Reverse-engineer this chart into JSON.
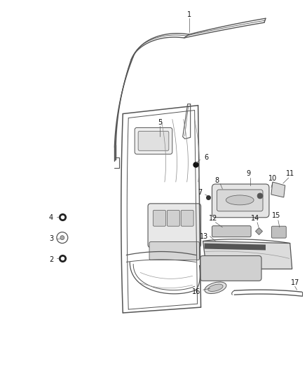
{
  "background_color": "#ffffff",
  "fig_width": 4.38,
  "fig_height": 5.33,
  "dpi": 100,
  "line_color": "#555555",
  "label_fontsize": 7.0,
  "label_color": "#111111"
}
